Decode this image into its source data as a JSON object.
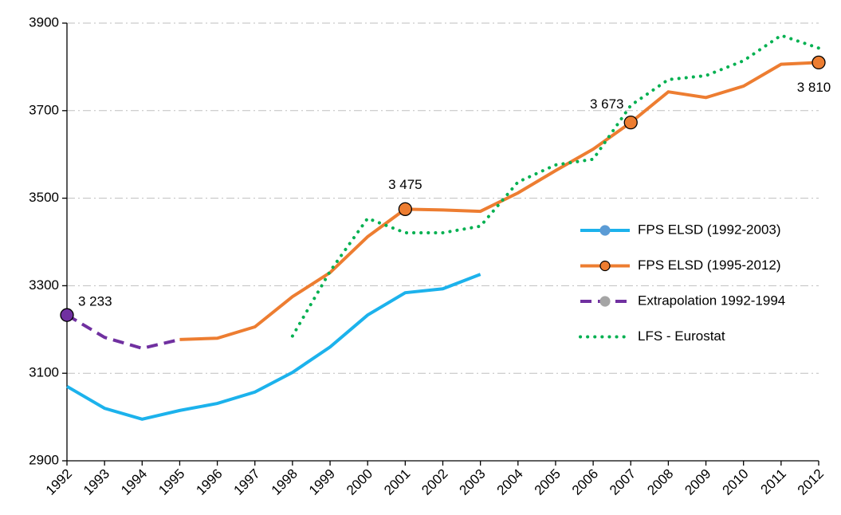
{
  "chart_data": {
    "type": "line",
    "categories": [
      "1992",
      "1993",
      "1994",
      "1995",
      "1996",
      "1997",
      "1998",
      "1999",
      "2000",
      "2001",
      "2002",
      "2003",
      "2004",
      "2005",
      "2006",
      "2007",
      "2008",
      "2009",
      "2010",
      "2011",
      "2012"
    ],
    "ylim": [
      2900,
      3900
    ],
    "yticks": [
      2900,
      3100,
      3300,
      3500,
      3700,
      3900
    ],
    "grid": true,
    "legend": "right",
    "series": [
      {
        "name": "FPS ELSD (1992-2003)",
        "color": "#1cb2ec",
        "marker_color": "#5b9bd5",
        "dash": "solid",
        "values": [
          3070,
          3020,
          2995,
          3015,
          3031,
          3057,
          3102,
          3160,
          3233,
          3284,
          3293,
          3326,
          null,
          null,
          null,
          null,
          null,
          null,
          null,
          null,
          null
        ]
      },
      {
        "name": "FPS ELSD (1995-2012)",
        "color": "#ed7d31",
        "marker_color": "#ed7d31",
        "dash": "solid",
        "values": [
          null,
          null,
          null,
          3177,
          3180,
          3206,
          3275,
          3330,
          3412,
          3475,
          3473,
          3470,
          3512,
          3563,
          3612,
          3673,
          3743,
          3730,
          3756,
          3806,
          3810
        ],
        "value_labels": [
          null,
          null,
          null,
          null,
          null,
          null,
          null,
          null,
          null,
          "3 475",
          null,
          null,
          null,
          null,
          null,
          "3 673",
          null,
          null,
          null,
          null,
          "3 810"
        ]
      },
      {
        "name": "Extrapolation 1992-1994",
        "color": "#7030a0",
        "marker_color": "#a5a5a5",
        "dash": "dashed",
        "values": [
          3233,
          3182,
          3157,
          3177,
          null,
          null,
          null,
          null,
          null,
          null,
          null,
          null,
          null,
          null,
          null,
          null,
          null,
          null,
          null,
          null,
          null
        ],
        "value_labels": [
          "3 233",
          null,
          null,
          null,
          null,
          null,
          null,
          null,
          null,
          null,
          null,
          null,
          null,
          null,
          null,
          null,
          null,
          null,
          null,
          null,
          null
        ]
      },
      {
        "name": "LFS - Eurostat",
        "color": "#00b050",
        "dash": "dotted",
        "values": [
          null,
          null,
          null,
          null,
          null,
          null,
          3185,
          3333,
          3454,
          3421,
          3421,
          3436,
          3537,
          3576,
          3589,
          3712,
          3771,
          3780,
          3814,
          3872,
          3843
        ]
      }
    ]
  }
}
